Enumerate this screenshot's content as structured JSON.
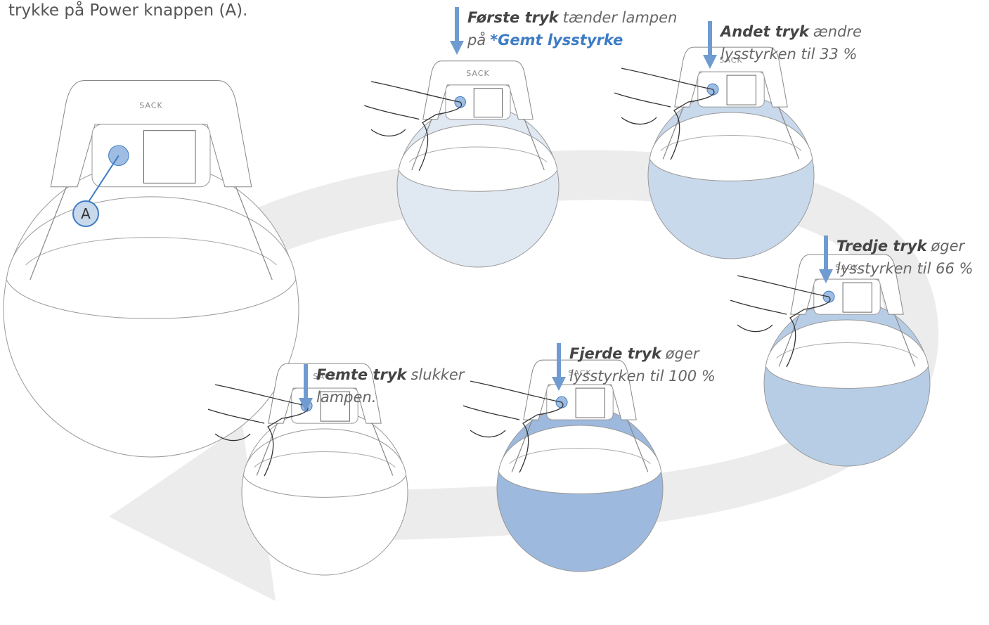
{
  "intro": "trykke på Power knappen (A).",
  "callout": "A",
  "brand": "SACK",
  "steps": [
    {
      "bold": "Første tryk",
      "line1": "tænder lampen",
      "line2": "på",
      "highlight": "*Gemt lysstyrke"
    },
    {
      "bold": "Andet tryk",
      "line1": "ændre",
      "line2": "lysstyrken til 33 %"
    },
    {
      "bold": "Tredje tryk",
      "line1": "øger",
      "line2": "lysstyrken til 66 %"
    },
    {
      "bold": "Fjerde tryk",
      "line1": "øger",
      "line2": "lysstyrken til 100 %"
    },
    {
      "bold": "Femte tryk",
      "line1": "slukker",
      "line2": "lampen."
    }
  ]
}
